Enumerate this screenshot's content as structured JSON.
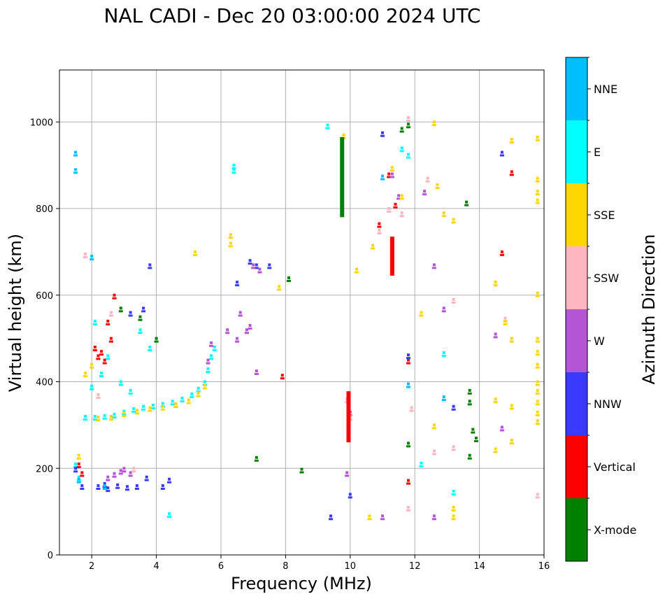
{
  "chart_data": {
    "type": "scatter",
    "title": "NAL CADI - Dec 20 03:00:00 2024 UTC",
    "xlabel": "Frequency (MHz)",
    "ylabel": "Virtual height (km)",
    "xlim": [
      1,
      16
    ],
    "ylim": [
      0,
      1120
    ],
    "xticks": [
      2,
      4,
      6,
      8,
      10,
      12,
      14,
      16
    ],
    "yticks": [
      0,
      200,
      400,
      600,
      800,
      1000
    ],
    "grid": true,
    "colorbar": {
      "label": "Azimuth Direction",
      "categories": [
        {
          "name": "X-mode",
          "color": "#008000"
        },
        {
          "name": "Vertical",
          "color": "#ff0000"
        },
        {
          "name": "NNW",
          "color": "#3a3aff"
        },
        {
          "name": "W",
          "color": "#b455d6"
        },
        {
          "name": "SSW",
          "color": "#ffb6c1"
        },
        {
          "name": "SSE",
          "color": "#ffd700"
        },
        {
          "name": "E",
          "color": "#00ffff"
        },
        {
          "name": "NNE",
          "color": "#00bfff"
        }
      ]
    },
    "traces": [
      {
        "name": "ionogram-trace-main",
        "category": "E",
        "points": [
          [
            2.1,
            320
          ],
          [
            2.4,
            322
          ],
          [
            2.7,
            325
          ],
          [
            3.0,
            332
          ],
          [
            3.3,
            338
          ],
          [
            3.6,
            343
          ],
          [
            3.9,
            346
          ],
          [
            4.2,
            350
          ],
          [
            4.5,
            355
          ],
          [
            4.8,
            362
          ],
          [
            5.1,
            372
          ],
          [
            5.3,
            385
          ],
          [
            5.5,
            400
          ],
          [
            5.6,
            430
          ],
          [
            5.7,
            460
          ],
          [
            5.8,
            480
          ]
        ]
      },
      {
        "name": "ionogram-trace-main-sse",
        "category": "SSE",
        "points": [
          [
            2.2,
            318
          ],
          [
            2.6,
            320
          ],
          [
            3.0,
            328
          ],
          [
            3.4,
            334
          ],
          [
            3.8,
            340
          ],
          [
            4.2,
            343
          ],
          [
            4.6,
            349
          ],
          [
            5.0,
            358
          ],
          [
            5.3,
            374
          ],
          [
            5.5,
            392
          ]
        ]
      },
      {
        "name": "low-layer",
        "category": "NNW",
        "points": [
          [
            2.2,
            160
          ],
          [
            2.5,
            155
          ],
          [
            2.8,
            162
          ],
          [
            3.1,
            158
          ],
          [
            3.4,
            160
          ],
          [
            3.7,
            180
          ]
        ]
      },
      {
        "name": "low-layer-w",
        "category": "W",
        "points": [
          [
            2.5,
            180
          ],
          [
            2.7,
            188
          ],
          [
            2.9,
            195
          ],
          [
            3.0,
            200
          ],
          [
            3.2,
            190
          ]
        ]
      },
      {
        "name": "scatter-e",
        "category": "E",
        "points": [
          [
            1.5,
            210
          ],
          [
            1.6,
            180
          ],
          [
            1.8,
            320
          ],
          [
            2.0,
            390
          ],
          [
            2.1,
            540
          ],
          [
            2.3,
            420
          ],
          [
            2.5,
            460
          ],
          [
            2.9,
            400
          ],
          [
            3.2,
            380
          ],
          [
            3.5,
            520
          ],
          [
            3.8,
            480
          ],
          [
            4.0,
            500
          ],
          [
            4.4,
            95
          ],
          [
            6.4,
            890
          ],
          [
            6.4,
            900
          ],
          [
            9.3,
            993
          ],
          [
            11.6,
            940
          ],
          [
            11.8,
            925
          ],
          [
            12.2,
            212
          ],
          [
            12.9,
            467
          ],
          [
            13.2,
            147
          ]
        ]
      },
      {
        "name": "scatter-red",
        "category": "Vertical",
        "points": [
          [
            1.6,
            210
          ],
          [
            1.7,
            190
          ],
          [
            2.1,
            480
          ],
          [
            2.2,
            460
          ],
          [
            2.3,
            470
          ],
          [
            2.4,
            450
          ],
          [
            2.5,
            540
          ],
          [
            2.6,
            500
          ],
          [
            2.7,
            600
          ],
          [
            7.9,
            415
          ],
          [
            10.9,
            765
          ],
          [
            11.2,
            880
          ],
          [
            11.4,
            810
          ],
          [
            11.8,
            172
          ],
          [
            11.8,
            450
          ],
          [
            14.7,
            700
          ],
          [
            15.0,
            885
          ]
        ]
      },
      {
        "name": "scatter-nnw",
        "category": "NNW",
        "points": [
          [
            1.5,
            200
          ],
          [
            1.7,
            160
          ],
          [
            2.4,
            165
          ],
          [
            3.2,
            560
          ],
          [
            3.6,
            570
          ],
          [
            3.8,
            670
          ],
          [
            4.2,
            160
          ],
          [
            4.4,
            175
          ],
          [
            6.5,
            630
          ],
          [
            6.9,
            680
          ],
          [
            7.1,
            670
          ],
          [
            7.5,
            670
          ],
          [
            9.4,
            90
          ],
          [
            10.0,
            140
          ],
          [
            11.0,
            975
          ],
          [
            11.8,
            462
          ],
          [
            13.2,
            343
          ],
          [
            14.7,
            930
          ]
        ]
      },
      {
        "name": "scatter-w",
        "category": "W",
        "points": [
          [
            5.6,
            450
          ],
          [
            5.7,
            490
          ],
          [
            6.2,
            520
          ],
          [
            6.5,
            500
          ],
          [
            6.6,
            560
          ],
          [
            6.8,
            520
          ],
          [
            6.9,
            530
          ],
          [
            7.0,
            670
          ],
          [
            7.2,
            660
          ],
          [
            7.1,
            425
          ],
          [
            9.9,
            190
          ],
          [
            10.0,
            330
          ],
          [
            11.0,
            90
          ],
          [
            11.3,
            880
          ],
          [
            11.5,
            830
          ],
          [
            12.3,
            840
          ],
          [
            12.6,
            90
          ],
          [
            12.6,
            670
          ],
          [
            12.9,
            570
          ],
          [
            14.5,
            510
          ],
          [
            14.7,
            295
          ]
        ]
      },
      {
        "name": "scatter-ssw",
        "category": "SSW",
        "points": [
          [
            1.8,
            695
          ],
          [
            2.2,
            370
          ],
          [
            2.6,
            560
          ],
          [
            3.3,
            200
          ],
          [
            9.9,
            360
          ],
          [
            10.0,
            320
          ],
          [
            10.9,
            750
          ],
          [
            11.2,
            800
          ],
          [
            11.6,
            790
          ],
          [
            11.8,
            1010
          ],
          [
            11.8,
            110
          ],
          [
            11.9,
            340
          ],
          [
            12.4,
            870
          ],
          [
            12.6,
            240
          ],
          [
            13.2,
            250
          ],
          [
            13.2,
            590
          ],
          [
            14.8,
            547
          ],
          [
            15.8,
            140
          ]
        ]
      },
      {
        "name": "scatter-sse",
        "category": "SSE",
        "points": [
          [
            1.6,
            230
          ],
          [
            1.8,
            420
          ],
          [
            2.0,
            440
          ],
          [
            5.2,
            700
          ],
          [
            6.3,
            740
          ],
          [
            6.3,
            720
          ],
          [
            7.8,
            620
          ],
          [
            9.8,
            970
          ],
          [
            10.2,
            660
          ],
          [
            10.6,
            90
          ],
          [
            10.7,
            715
          ],
          [
            11.3,
            895
          ],
          [
            11.6,
            830
          ],
          [
            12.2,
            560
          ],
          [
            12.6,
            300
          ],
          [
            12.6,
            1000
          ],
          [
            12.7,
            855
          ],
          [
            12.9,
            790
          ],
          [
            13.2,
            90
          ],
          [
            13.2,
            110
          ],
          [
            13.2,
            775
          ],
          [
            14.5,
            245
          ],
          [
            14.5,
            360
          ],
          [
            14.5,
            630
          ],
          [
            14.8,
            540
          ],
          [
            15.0,
            265
          ],
          [
            15.0,
            345
          ],
          [
            15.0,
            500
          ],
          [
            15.0,
            960
          ],
          [
            15.8,
            310
          ],
          [
            15.8,
            330
          ],
          [
            15.8,
            355
          ],
          [
            15.8,
            380
          ],
          [
            15.8,
            400
          ],
          [
            15.8,
            440
          ],
          [
            15.8,
            470
          ],
          [
            15.8,
            500
          ],
          [
            15.8,
            605
          ],
          [
            15.8,
            820
          ],
          [
            15.8,
            840
          ],
          [
            15.8,
            870
          ],
          [
            15.8,
            965
          ]
        ]
      },
      {
        "name": "scatter-green",
        "category": "X-mode",
        "points": [
          [
            2.9,
            570
          ],
          [
            3.5,
            550
          ],
          [
            4.0,
            500
          ],
          [
            7.1,
            225
          ],
          [
            8.1,
            640
          ],
          [
            8.5,
            198
          ],
          [
            11.6,
            985
          ],
          [
            11.8,
            258
          ],
          [
            11.8,
            995
          ],
          [
            13.6,
            815
          ],
          [
            13.7,
            230
          ],
          [
            13.7,
            355
          ],
          [
            13.7,
            380
          ],
          [
            13.8,
            290
          ],
          [
            13.9,
            270
          ]
        ]
      },
      {
        "name": "scatter-nne",
        "category": "NNE",
        "points": [
          [
            1.5,
            930
          ],
          [
            1.5,
            890
          ],
          [
            1.6,
            175
          ],
          [
            2.0,
            690
          ],
          [
            2.4,
            160
          ],
          [
            11.0,
            875
          ],
          [
            11.8,
            395
          ],
          [
            12.9,
            365
          ]
        ]
      }
    ],
    "bars": [
      {
        "name": "green-column-10mhz",
        "category": "X-mode",
        "x": 9.75,
        "y0": 780,
        "y1": 965
      },
      {
        "name": "red-column-11mhz",
        "category": "Vertical",
        "x": 11.3,
        "y0": 645,
        "y1": 735
      },
      {
        "name": "red-column-10mhz",
        "category": "Vertical",
        "x": 9.95,
        "y0": 260,
        "y1": 378
      }
    ]
  }
}
